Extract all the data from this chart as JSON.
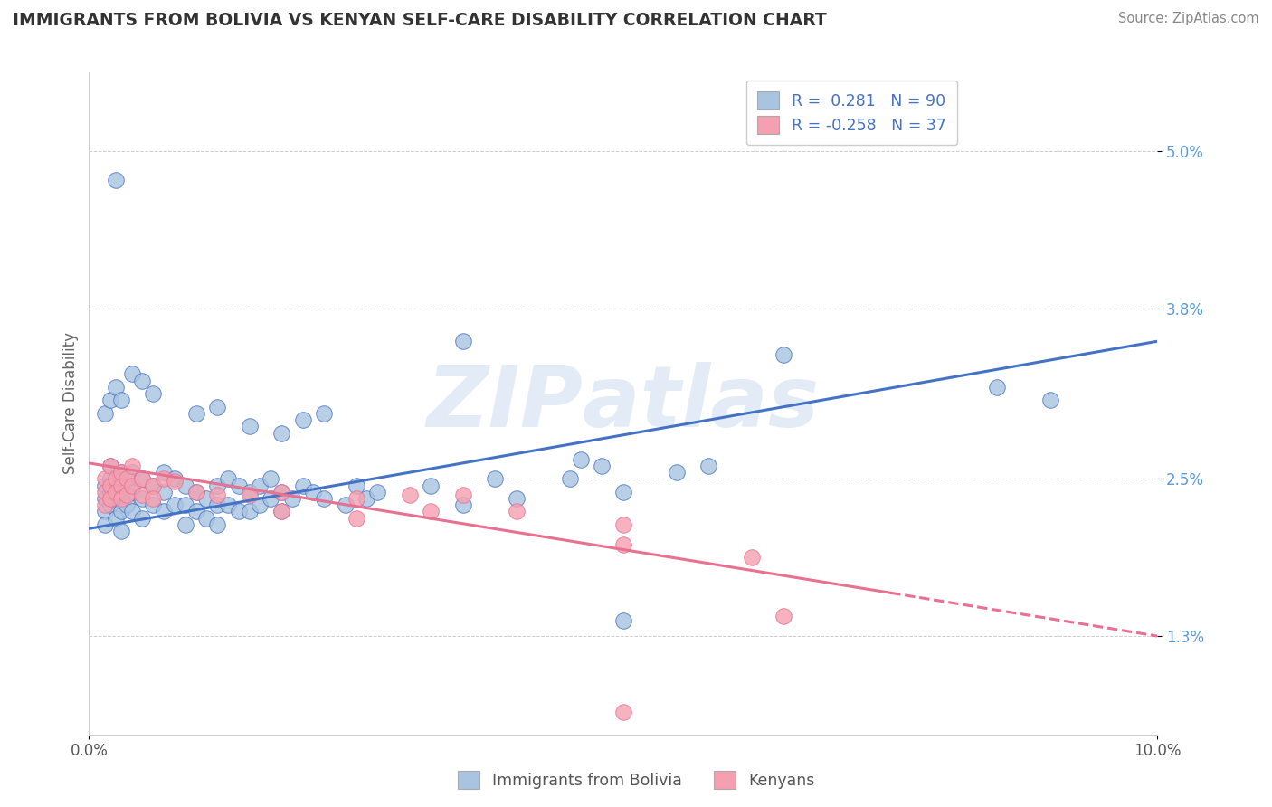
{
  "title": "IMMIGRANTS FROM BOLIVIA VS KENYAN SELF-CARE DISABILITY CORRELATION CHART",
  "source": "Source: ZipAtlas.com",
  "ylabel": "Self-Care Disability",
  "xlim": [
    0.0,
    10.0
  ],
  "ylim": [
    0.55,
    5.6
  ],
  "yticks": [
    1.3,
    2.5,
    3.8,
    5.0
  ],
  "ytick_labels": [
    "1.3%",
    "2.5%",
    "3.8%",
    "5.0%"
  ],
  "color_blue": "#a8c4e0",
  "color_pink": "#f4a0b0",
  "line_blue": "#4472c4",
  "line_pink": "#e87090",
  "bolivia_line_x0": 0.0,
  "bolivia_line_y0": 2.12,
  "bolivia_line_x1": 10.0,
  "bolivia_line_y1": 3.55,
  "kenya_line_x0": 0.0,
  "kenya_line_y0": 2.62,
  "kenya_line_x1": 10.0,
  "kenya_line_y1": 1.3,
  "kenya_solid_end": 7.5,
  "bolivia_points": [
    [
      0.15,
      2.45
    ],
    [
      0.15,
      2.35
    ],
    [
      0.15,
      2.25
    ],
    [
      0.15,
      2.15
    ],
    [
      0.2,
      2.6
    ],
    [
      0.2,
      2.5
    ],
    [
      0.2,
      2.4
    ],
    [
      0.2,
      2.3
    ],
    [
      0.25,
      2.5
    ],
    [
      0.25,
      2.35
    ],
    [
      0.25,
      2.2
    ],
    [
      0.3,
      2.55
    ],
    [
      0.3,
      2.4
    ],
    [
      0.3,
      2.25
    ],
    [
      0.3,
      2.1
    ],
    [
      0.35,
      2.45
    ],
    [
      0.35,
      2.3
    ],
    [
      0.4,
      2.55
    ],
    [
      0.4,
      2.4
    ],
    [
      0.4,
      2.25
    ],
    [
      0.5,
      2.5
    ],
    [
      0.5,
      2.35
    ],
    [
      0.5,
      2.2
    ],
    [
      0.6,
      2.45
    ],
    [
      0.6,
      2.3
    ],
    [
      0.7,
      2.55
    ],
    [
      0.7,
      2.4
    ],
    [
      0.7,
      2.25
    ],
    [
      0.8,
      2.5
    ],
    [
      0.8,
      2.3
    ],
    [
      0.9,
      2.45
    ],
    [
      0.9,
      2.3
    ],
    [
      0.9,
      2.15
    ],
    [
      1.0,
      2.4
    ],
    [
      1.0,
      2.25
    ],
    [
      1.1,
      2.35
    ],
    [
      1.1,
      2.2
    ],
    [
      1.2,
      2.45
    ],
    [
      1.2,
      2.3
    ],
    [
      1.2,
      2.15
    ],
    [
      1.3,
      2.5
    ],
    [
      1.3,
      2.3
    ],
    [
      1.4,
      2.45
    ],
    [
      1.4,
      2.25
    ],
    [
      1.5,
      2.4
    ],
    [
      1.5,
      2.25
    ],
    [
      1.6,
      2.45
    ],
    [
      1.6,
      2.3
    ],
    [
      1.7,
      2.5
    ],
    [
      1.7,
      2.35
    ],
    [
      1.8,
      2.4
    ],
    [
      1.8,
      2.25
    ],
    [
      1.9,
      2.35
    ],
    [
      2.0,
      2.45
    ],
    [
      2.1,
      2.4
    ],
    [
      2.2,
      2.35
    ],
    [
      2.4,
      2.3
    ],
    [
      2.5,
      2.45
    ],
    [
      2.6,
      2.35
    ],
    [
      2.7,
      2.4
    ],
    [
      0.15,
      3.0
    ],
    [
      0.2,
      3.1
    ],
    [
      0.25,
      3.2
    ],
    [
      0.3,
      3.1
    ],
    [
      0.4,
      3.3
    ],
    [
      0.5,
      3.25
    ],
    [
      0.6,
      3.15
    ],
    [
      1.0,
      3.0
    ],
    [
      1.2,
      3.05
    ],
    [
      1.5,
      2.9
    ],
    [
      1.8,
      2.85
    ],
    [
      2.0,
      2.95
    ],
    [
      2.2,
      3.0
    ],
    [
      0.25,
      4.78
    ],
    [
      3.5,
      3.55
    ],
    [
      4.6,
      2.65
    ],
    [
      6.5,
      3.45
    ],
    [
      8.5,
      3.2
    ],
    [
      9.0,
      3.1
    ],
    [
      5.5,
      2.55
    ],
    [
      5.8,
      2.6
    ],
    [
      4.5,
      2.5
    ],
    [
      3.8,
      2.5
    ],
    [
      3.2,
      2.45
    ],
    [
      4.0,
      2.35
    ],
    [
      5.0,
      2.4
    ],
    [
      4.8,
      2.6
    ],
    [
      3.5,
      2.3
    ],
    [
      5.0,
      1.42
    ]
  ],
  "kenya_points": [
    [
      0.15,
      2.5
    ],
    [
      0.15,
      2.4
    ],
    [
      0.15,
      2.3
    ],
    [
      0.2,
      2.6
    ],
    [
      0.2,
      2.45
    ],
    [
      0.2,
      2.35
    ],
    [
      0.25,
      2.5
    ],
    [
      0.25,
      2.4
    ],
    [
      0.3,
      2.55
    ],
    [
      0.3,
      2.45
    ],
    [
      0.3,
      2.35
    ],
    [
      0.35,
      2.5
    ],
    [
      0.35,
      2.38
    ],
    [
      0.4,
      2.6
    ],
    [
      0.4,
      2.45
    ],
    [
      0.5,
      2.5
    ],
    [
      0.5,
      2.38
    ],
    [
      0.6,
      2.45
    ],
    [
      0.6,
      2.35
    ],
    [
      0.7,
      2.5
    ],
    [
      0.8,
      2.48
    ],
    [
      1.0,
      2.4
    ],
    [
      1.2,
      2.38
    ],
    [
      1.5,
      2.38
    ],
    [
      1.8,
      2.4
    ],
    [
      1.8,
      2.25
    ],
    [
      2.5,
      2.35
    ],
    [
      2.5,
      2.2
    ],
    [
      3.0,
      2.38
    ],
    [
      3.2,
      2.25
    ],
    [
      3.5,
      2.38
    ],
    [
      4.0,
      2.25
    ],
    [
      5.0,
      2.15
    ],
    [
      5.0,
      2.0
    ],
    [
      6.2,
      1.9
    ],
    [
      6.5,
      1.45
    ],
    [
      5.0,
      0.72
    ]
  ]
}
